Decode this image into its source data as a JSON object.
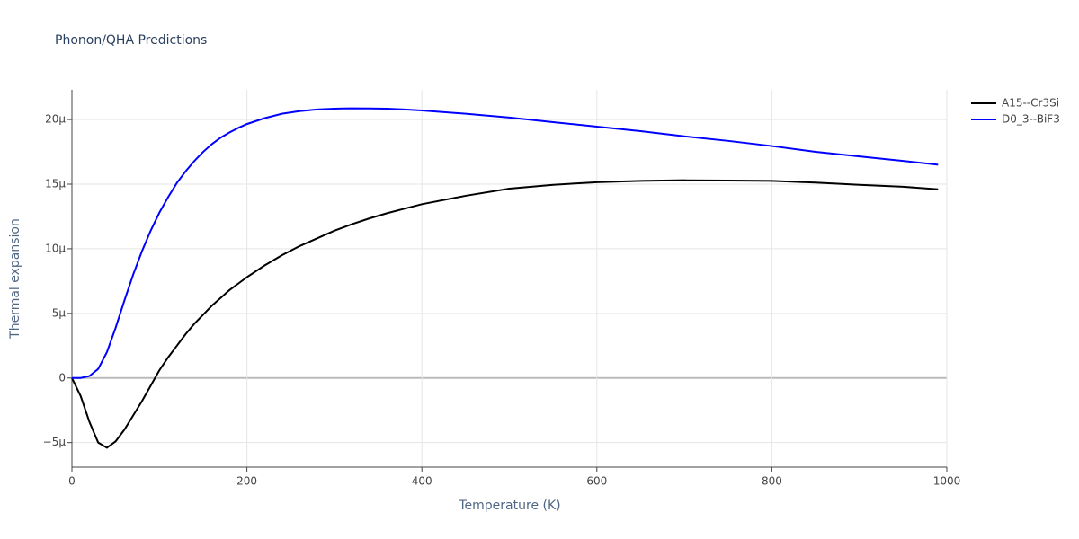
{
  "chart_data": {
    "type": "line",
    "title": "Phonon/QHA Predictions",
    "x_label": "Temperature (K)",
    "y_label": "Thermal expansion",
    "x": [
      0,
      10,
      20,
      30,
      40,
      50,
      60,
      70,
      80,
      90,
      100,
      110,
      120,
      130,
      140,
      150,
      160,
      170,
      180,
      190,
      200,
      220,
      240,
      260,
      280,
      300,
      320,
      340,
      360,
      380,
      400,
      450,
      500,
      550,
      600,
      650,
      700,
      750,
      800,
      850,
      900,
      950,
      990
    ],
    "series": [
      {
        "name": "A15--Cr3Si",
        "color": "#000000",
        "values": [
          0,
          -1.4,
          -3.4,
          -5.0,
          -5.4,
          -4.9,
          -4.0,
          -2.9,
          -1.8,
          -0.6,
          0.6,
          1.6,
          2.5,
          3.4,
          4.2,
          4.9,
          5.6,
          6.2,
          6.8,
          7.3,
          7.8,
          8.7,
          9.5,
          10.2,
          10.8,
          11.4,
          11.9,
          12.35,
          12.75,
          13.1,
          13.45,
          14.1,
          14.65,
          14.95,
          15.15,
          15.25,
          15.3,
          15.28,
          15.25,
          15.12,
          14.95,
          14.8,
          14.6
        ]
      },
      {
        "name": "D0_3--BiF3",
        "color": "#0000ff",
        "values": [
          0,
          0,
          0.15,
          0.7,
          2.0,
          3.9,
          6.0,
          8.0,
          9.8,
          11.4,
          12.8,
          14.0,
          15.1,
          16.0,
          16.8,
          17.5,
          18.1,
          18.6,
          19.0,
          19.35,
          19.65,
          20.1,
          20.45,
          20.65,
          20.78,
          20.84,
          20.87,
          20.86,
          20.84,
          20.78,
          20.7,
          20.45,
          20.15,
          19.8,
          19.45,
          19.1,
          18.7,
          18.35,
          17.95,
          17.5,
          17.15,
          16.8,
          16.5
        ]
      }
    ],
    "xlim": [
      0,
      1000
    ],
    "xticks": [
      0,
      200,
      400,
      600,
      800,
      1000
    ],
    "ylim": [
      -6.9,
      22.3
    ],
    "yticks": [
      {
        "value": -5,
        "label": "−5μ"
      },
      {
        "value": 0,
        "label": "0"
      },
      {
        "value": 5,
        "label": "5μ"
      },
      {
        "value": 10,
        "label": "10μ"
      },
      {
        "value": 15,
        "label": "15μ"
      },
      {
        "value": 20,
        "label": "20μ"
      }
    ],
    "grid": true,
    "legend": "right"
  }
}
